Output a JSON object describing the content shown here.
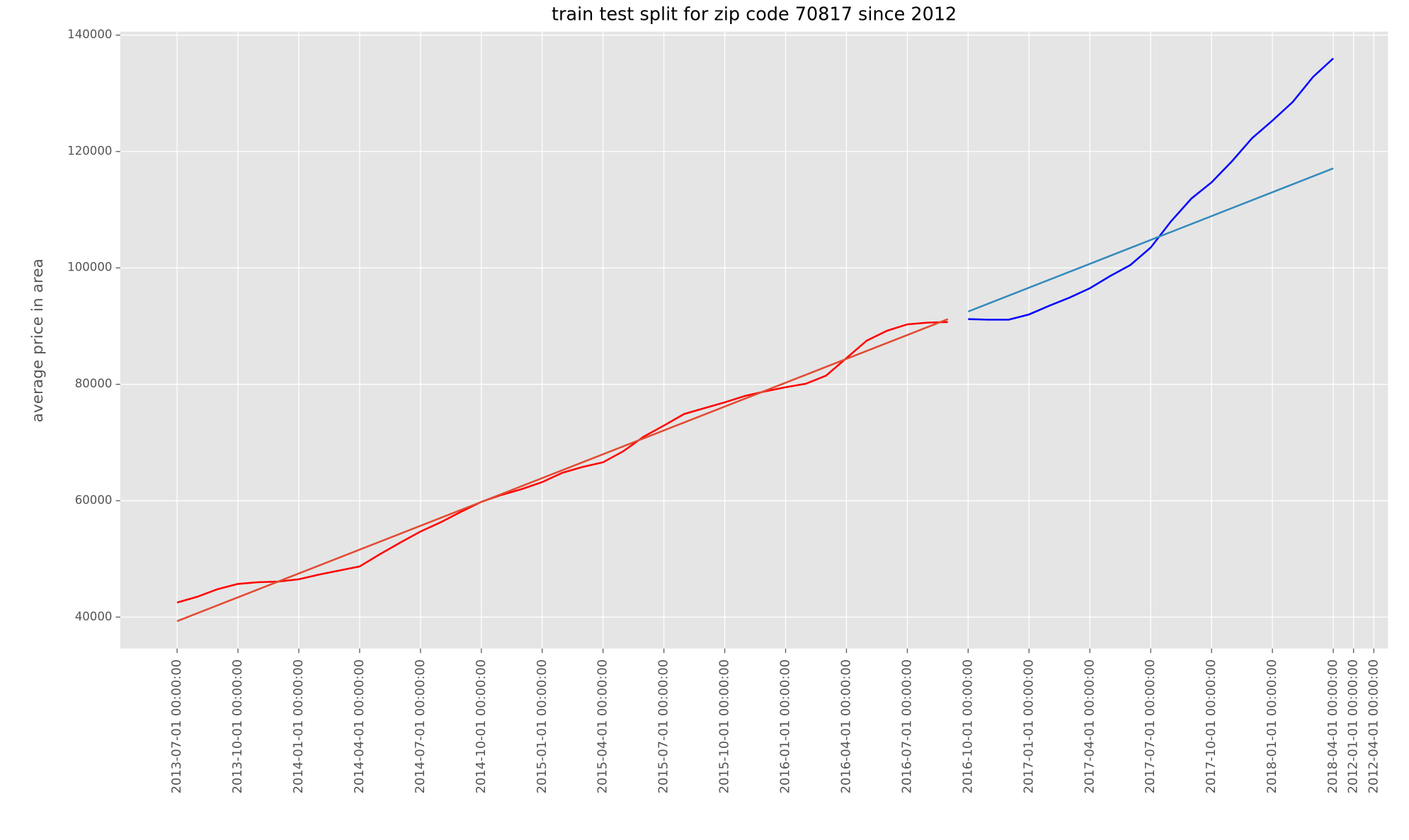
{
  "chart_data": {
    "type": "line",
    "title": "train test split for zip code 70817 since 2012",
    "y_label": "average price in area",
    "xlim": [
      -2.8,
      59.7
    ],
    "xticks": [
      {
        "value": 0,
        "label": "2013-07-01 00:00:00"
      },
      {
        "value": 3,
        "label": "2013-10-01 00:00:00"
      },
      {
        "value": 6,
        "label": "2014-01-01 00:00:00"
      },
      {
        "value": 9,
        "label": "2014-04-01 00:00:00"
      },
      {
        "value": 12,
        "label": "2014-07-01 00:00:00"
      },
      {
        "value": 15,
        "label": "2014-10-01 00:00:00"
      },
      {
        "value": 18,
        "label": "2015-01-01 00:00:00"
      },
      {
        "value": 21,
        "label": "2015-04-01 00:00:00"
      },
      {
        "value": 24,
        "label": "2015-07-01 00:00:00"
      },
      {
        "value": 27,
        "label": "2015-10-01 00:00:00"
      },
      {
        "value": 30,
        "label": "2016-01-01 00:00:00"
      },
      {
        "value": 33,
        "label": "2016-04-01 00:00:00"
      },
      {
        "value": 36,
        "label": "2016-07-01 00:00:00"
      },
      {
        "value": 39,
        "label": "2016-10-01 00:00:00"
      },
      {
        "value": 42,
        "label": "2017-01-01 00:00:00"
      },
      {
        "value": 45,
        "label": "2017-04-01 00:00:00"
      },
      {
        "value": 48,
        "label": "2017-07-01 00:00:00"
      },
      {
        "value": 51,
        "label": "2017-10-01 00:00:00"
      },
      {
        "value": 54,
        "label": "2018-01-01 00:00:00"
      },
      {
        "value": 57,
        "label": "2018-04-01 00:00:00"
      },
      {
        "value": 58,
        "label": "2012-01-01 00:00:00"
      },
      {
        "value": 59,
        "label": "2012-04-01 00:00:00"
      }
    ],
    "ylim": [
      34600,
      140600
    ],
    "yticks": [
      40000,
      60000,
      80000,
      100000,
      120000,
      140000
    ],
    "grid": true,
    "series": [
      {
        "color": "#ff0000",
        "x": [
          0,
          1,
          2,
          3,
          4,
          5,
          6,
          7,
          8,
          9,
          10,
          11,
          12,
          13,
          14,
          15,
          16,
          17,
          18,
          19,
          20,
          21,
          22,
          23,
          24,
          25,
          26,
          27,
          28,
          29,
          30,
          31,
          32,
          33,
          34,
          35,
          36,
          37,
          38
        ],
        "values": [
          42500,
          43500,
          44800,
          45700,
          46000,
          46100,
          46500,
          47300,
          48000,
          48700,
          50800,
          52800,
          54700,
          56300,
          58100,
          59800,
          61000,
          62000,
          63200,
          64800,
          65800,
          66600,
          68500,
          71000,
          72900,
          74900,
          75900,
          76900,
          78000,
          78800,
          79500,
          80100,
          81500,
          84500,
          87500,
          89200,
          90300,
          90600,
          90700
        ]
      },
      {
        "color": "#e24a33",
        "x": [
          0,
          38
        ],
        "values": [
          39300,
          91200
        ]
      },
      {
        "color": "#0000ff",
        "x": [
          39,
          40,
          41,
          42,
          43,
          44,
          45,
          46,
          47,
          48,
          49,
          50,
          51,
          52,
          53,
          54,
          55,
          56,
          57
        ],
        "values": [
          91200,
          91100,
          91100,
          92000,
          93500,
          94900,
          96500,
          98600,
          100500,
          103500,
          108000,
          111900,
          114700,
          118300,
          122300,
          125300,
          128500,
          132800,
          136000
        ]
      },
      {
        "color": "#348abd",
        "x": [
          39,
          57
        ],
        "values": [
          92500,
          117100
        ]
      }
    ]
  }
}
